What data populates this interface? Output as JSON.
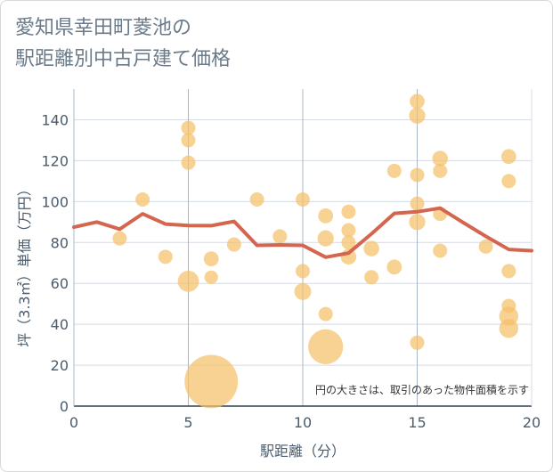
{
  "chart_data": {
    "type": "scatter",
    "title_line1": "愛知県幸田町菱池の",
    "title_line2": "駅距離別中古戸建て価格",
    "xlabel": "駅距離（分）",
    "ylabel": "坪（3.3㎡）単価（万円）",
    "note": "円の大きさは、取引のあった物件面積を示す",
    "xlim": [
      0,
      20
    ],
    "ylim": [
      0,
      155
    ],
    "xticks": [
      0,
      5,
      10,
      15,
      20
    ],
    "yticks": [
      0,
      20,
      40,
      60,
      80,
      100,
      120,
      140
    ],
    "colors": {
      "bubble": "#f5c06a",
      "line": "#d4654e",
      "grid": "#d5dce4",
      "vgrid": "#a9b8c8"
    },
    "points": [
      {
        "x": 2,
        "y": 82,
        "s": 1
      },
      {
        "x": 3,
        "y": 101,
        "s": 1
      },
      {
        "x": 4,
        "y": 73,
        "s": 1
      },
      {
        "x": 5,
        "y": 136,
        "s": 1
      },
      {
        "x": 5,
        "y": 130,
        "s": 1
      },
      {
        "x": 5,
        "y": 119,
        "s": 1
      },
      {
        "x": 5,
        "y": 61,
        "s": 2.2
      },
      {
        "x": 6,
        "y": 72,
        "s": 1.1
      },
      {
        "x": 6,
        "y": 63,
        "s": 0.9
      },
      {
        "x": 6,
        "y": 12,
        "s": 14
      },
      {
        "x": 7,
        "y": 79,
        "s": 1
      },
      {
        "x": 8,
        "y": 101,
        "s": 1
      },
      {
        "x": 9,
        "y": 83,
        "s": 1
      },
      {
        "x": 10,
        "y": 101,
        "s": 1
      },
      {
        "x": 10,
        "y": 66,
        "s": 1
      },
      {
        "x": 10,
        "y": 56,
        "s": 1.4
      },
      {
        "x": 11,
        "y": 93,
        "s": 1.1
      },
      {
        "x": 11,
        "y": 82,
        "s": 1.3
      },
      {
        "x": 11,
        "y": 45,
        "s": 1
      },
      {
        "x": 11,
        "y": 29,
        "s": 6
      },
      {
        "x": 12,
        "y": 95,
        "s": 1
      },
      {
        "x": 12,
        "y": 86,
        "s": 1
      },
      {
        "x": 12,
        "y": 80,
        "s": 1
      },
      {
        "x": 12,
        "y": 73,
        "s": 1.2
      },
      {
        "x": 13,
        "y": 77,
        "s": 1.2
      },
      {
        "x": 13,
        "y": 63,
        "s": 1
      },
      {
        "x": 14,
        "y": 115,
        "s": 1
      },
      {
        "x": 14,
        "y": 68,
        "s": 1.1
      },
      {
        "x": 15,
        "y": 149,
        "s": 1.1
      },
      {
        "x": 15,
        "y": 142,
        "s": 1.3
      },
      {
        "x": 15,
        "y": 113,
        "s": 1
      },
      {
        "x": 15,
        "y": 99,
        "s": 1
      },
      {
        "x": 15,
        "y": 90,
        "s": 1.3
      },
      {
        "x": 15,
        "y": 31,
        "s": 1
      },
      {
        "x": 16,
        "y": 121,
        "s": 1.2
      },
      {
        "x": 16,
        "y": 115,
        "s": 1
      },
      {
        "x": 16,
        "y": 94,
        "s": 1
      },
      {
        "x": 16,
        "y": 76,
        "s": 1
      },
      {
        "x": 18,
        "y": 78,
        "s": 1
      },
      {
        "x": 19,
        "y": 122,
        "s": 1.1
      },
      {
        "x": 19,
        "y": 110,
        "s": 1
      },
      {
        "x": 19,
        "y": 66,
        "s": 1
      },
      {
        "x": 19,
        "y": 49,
        "s": 1
      },
      {
        "x": 19,
        "y": 44,
        "s": 1.8
      },
      {
        "x": 19,
        "y": 38,
        "s": 1.8
      }
    ],
    "trend": {
      "x": [
        0,
        1,
        2,
        3,
        4,
        5,
        6,
        7,
        8,
        9,
        10,
        11,
        12,
        13,
        14,
        15,
        16,
        17,
        18,
        19,
        20
      ],
      "y": [
        87.5,
        90,
        86.5,
        94,
        89,
        88.3,
        88.2,
        90.3,
        78.6,
        78.8,
        78.6,
        72.8,
        74.8,
        84.2,
        94.2,
        95,
        96.8,
        89.8,
        83,
        76.6,
        76
      ]
    }
  }
}
